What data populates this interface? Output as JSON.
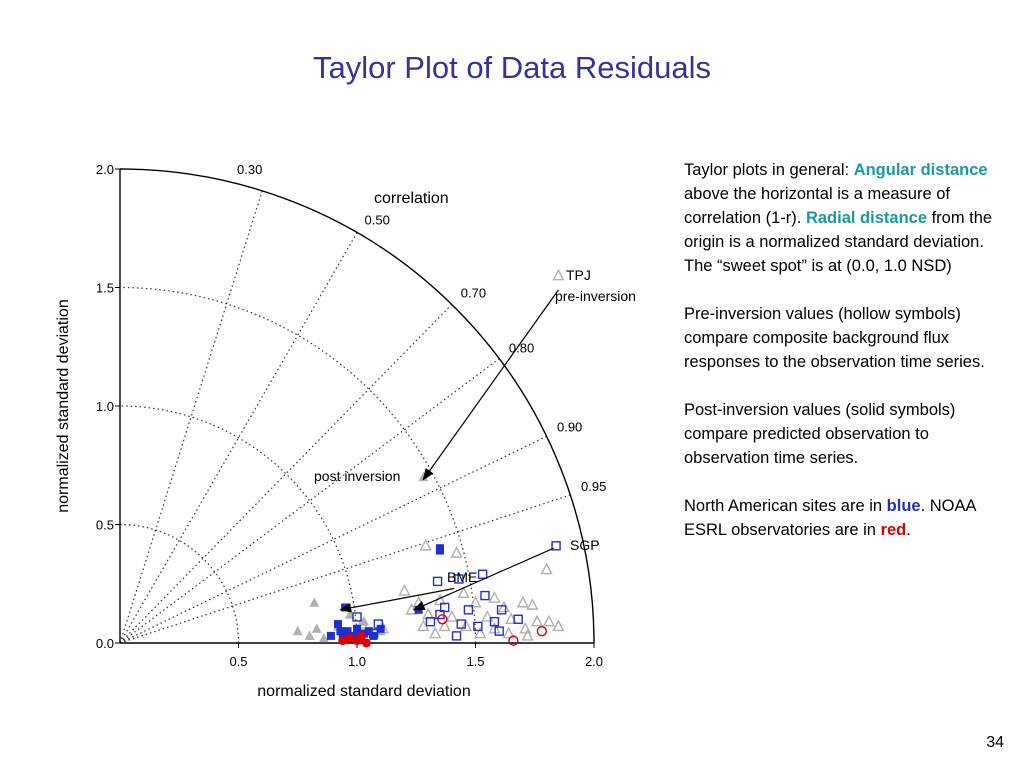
{
  "slide": {
    "title": "Taylor Plot of Data Residuals",
    "page_number": "34"
  },
  "text_panel": {
    "p1_a": "Taylor plots in general: ",
    "p1_b": "Angular distance",
    "p1_c": " above the horizontal is a measure of correlation (1-r). ",
    "p1_d": "Radial distance",
    "p1_e": " from the origin is a normalized standard deviation. The “sweet spot” is at (0.0, 1.0 NSD)",
    "p2": "Pre-inversion values (hollow symbols) compare composite background flux responses to the observation time series.",
    "p3": "Post-inversion values (solid symbols) compare predicted observation to observation time series.",
    "p4_a": "North American sites are in ",
    "p4_b": "blue",
    "p4_c": ". NOAA ESRL observatories are in ",
    "p4_d": "red",
    "p4_e": "."
  },
  "colors": {
    "title": "#33339a",
    "teal_highlight": "#1a9a98",
    "north_american": "#1f2fd0",
    "noaa_esrl": "#dd0000",
    "other": "#b0b0b0"
  },
  "chart_data": {
    "type": "scatter",
    "subtype": "taylor-diagram",
    "xlabel": "normalized standard deviation",
    "ylabel": "normalized standard deviation",
    "xlim": [
      0,
      2.0
    ],
    "ylim": [
      0,
      2.0
    ],
    "x_ticks": [
      "0.5",
      "1.0",
      "1.5",
      "2.0"
    ],
    "y_ticks": [
      "0.0",
      "0.5",
      "1.0",
      "1.5",
      "2.0"
    ],
    "x_tick_values": [
      0.5,
      1.0,
      1.5,
      2.0
    ],
    "y_tick_values": [
      0.0,
      0.5,
      1.0,
      1.5,
      2.0
    ],
    "std_arcs": [
      0.5,
      1.0,
      1.5
    ],
    "outer_arc": 2.0,
    "correlation_label": "correlation",
    "correlation_lines": [
      0.3,
      0.5,
      0.7,
      0.8,
      0.9,
      0.95
    ],
    "correlation_labels": [
      "0.30",
      "0.50",
      "0.70",
      "0.80",
      "0.90",
      "0.95"
    ],
    "annotations": {
      "tpj": "TPJ",
      "tpj_sub": "pre-inversion",
      "post": "post inversion",
      "sgp": "SGP",
      "bme": "BME"
    },
    "arrows": [
      {
        "from": [
          1.85,
          1.49
        ],
        "to": [
          1.28,
          0.69
        ]
      },
      {
        "from": [
          1.83,
          0.4
        ],
        "to": [
          1.24,
          0.14
        ]
      },
      {
        "from": [
          1.41,
          0.23
        ],
        "to": [
          0.93,
          0.14
        ]
      }
    ],
    "series": [
      {
        "name": "gray-hollow-triangle",
        "color": "#b0b0b0",
        "marker": "triangle",
        "filled": false,
        "points": [
          [
            1.85,
            1.55
          ],
          [
            1.29,
            0.41
          ],
          [
            1.42,
            0.38
          ],
          [
            1.8,
            0.31
          ],
          [
            1.2,
            0.22
          ],
          [
            1.45,
            0.21
          ],
          [
            1.58,
            0.19
          ],
          [
            1.35,
            0.18
          ],
          [
            1.26,
            0.17
          ],
          [
            1.5,
            0.17
          ],
          [
            1.62,
            0.15
          ],
          [
            1.7,
            0.17
          ],
          [
            1.74,
            0.16
          ],
          [
            1.23,
            0.14
          ],
          [
            1.3,
            0.12
          ],
          [
            1.4,
            0.11
          ],
          [
            1.55,
            0.11
          ],
          [
            1.65,
            0.1
          ],
          [
            1.76,
            0.09
          ],
          [
            1.81,
            0.09
          ],
          [
            1.28,
            0.07
          ],
          [
            1.37,
            0.07
          ],
          [
            1.46,
            0.07
          ],
          [
            1.58,
            0.06
          ],
          [
            1.71,
            0.06
          ],
          [
            1.85,
            0.07
          ],
          [
            1.33,
            0.04
          ],
          [
            1.52,
            0.04
          ],
          [
            1.64,
            0.04
          ],
          [
            1.72,
            0.03
          ],
          [
            1.11,
            0.06
          ],
          [
            1.02,
            0.08
          ]
        ]
      },
      {
        "name": "gray-solid-triangle",
        "color": "#b0b0b0",
        "marker": "triangle",
        "filled": true,
        "points": [
          [
            1.28,
            0.7
          ],
          [
            0.82,
            0.17
          ],
          [
            0.75,
            0.05
          ],
          [
            0.83,
            0.06
          ],
          [
            0.92,
            0.07
          ],
          [
            0.97,
            0.12
          ],
          [
            1.03,
            0.09
          ],
          [
            1.1,
            0.05
          ],
          [
            0.8,
            0.03
          ],
          [
            0.86,
            0.02
          ]
        ]
      },
      {
        "name": "blue-hollow-square",
        "color": "#1f2fd0",
        "marker": "square",
        "filled": false,
        "points": [
          [
            1.84,
            0.41
          ],
          [
            1.53,
            0.29
          ],
          [
            1.43,
            0.27
          ],
          [
            1.34,
            0.26
          ],
          [
            1.54,
            0.2
          ],
          [
            1.61,
            0.14
          ],
          [
            1.35,
            0.12
          ],
          [
            1.37,
            0.15
          ],
          [
            1.47,
            0.14
          ],
          [
            1.31,
            0.09
          ],
          [
            1.58,
            0.09
          ],
          [
            1.44,
            0.08
          ],
          [
            1.51,
            0.07
          ],
          [
            1.68,
            0.1
          ],
          [
            1.42,
            0.03
          ],
          [
            1.6,
            0.05
          ],
          [
            1.09,
            0.08
          ],
          [
            1.0,
            0.11
          ],
          [
            1.07,
            0.04
          ]
        ]
      },
      {
        "name": "blue-solid-square",
        "color": "#1f2fd0",
        "marker": "square",
        "filled": true,
        "points": [
          [
            1.35,
            0.4
          ],
          [
            1.35,
            0.39
          ],
          [
            0.95,
            0.15
          ],
          [
            1.26,
            0.14
          ],
          [
            0.92,
            0.08
          ],
          [
            0.96,
            0.05
          ],
          [
            1.0,
            0.06
          ],
          [
            1.03,
            0.04
          ],
          [
            1.05,
            0.05
          ],
          [
            0.89,
            0.03
          ],
          [
            0.94,
            0.02
          ],
          [
            0.99,
            0.03
          ],
          [
            1.07,
            0.03
          ],
          [
            1.1,
            0.06
          ],
          [
            0.93,
            0.05
          ],
          [
            1.01,
            0.02
          ]
        ]
      },
      {
        "name": "red-hollow-circle",
        "color": "#dd0000",
        "marker": "circle",
        "filled": false,
        "points": [
          [
            1.78,
            0.05
          ],
          [
            1.66,
            0.01
          ],
          [
            1.36,
            0.1
          ]
        ]
      },
      {
        "name": "red-solid-circle",
        "color": "#dd0000",
        "marker": "circle",
        "filled": true,
        "points": [
          [
            0.97,
            0.02
          ],
          [
            1.0,
            0.01
          ],
          [
            1.02,
            0.03
          ],
          [
            0.94,
            0.01
          ],
          [
            1.04,
            0.0
          ]
        ]
      }
    ]
  }
}
